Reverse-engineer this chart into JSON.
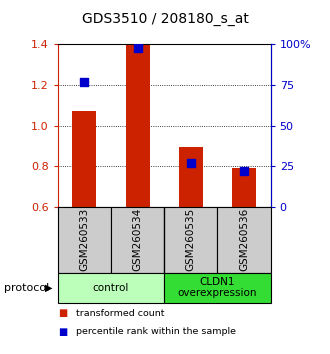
{
  "title": "GDS3510 / 208180_s_at",
  "samples": [
    "GSM260533",
    "GSM260534",
    "GSM260535",
    "GSM260536"
  ],
  "transformed_counts": [
    1.07,
    1.395,
    0.895,
    0.79
  ],
  "percentile_ranks": [
    77,
    98,
    27,
    22
  ],
  "bar_bottom": 0.6,
  "ylim_left": [
    0.6,
    1.4
  ],
  "ylim_right": [
    0,
    100
  ],
  "yticks_left": [
    0.6,
    0.8,
    1.0,
    1.2,
    1.4
  ],
  "yticks_right": [
    0,
    25,
    50,
    75,
    100
  ],
  "bar_color": "#cc2200",
  "dot_color": "#0000cc",
  "groups": [
    {
      "label": "control",
      "samples": [
        0,
        1
      ],
      "color": "#bbffbb"
    },
    {
      "label": "CLDN1\noverexpression",
      "samples": [
        2,
        3
      ],
      "color": "#33dd33"
    }
  ],
  "sample_bg_color": "#cccccc",
  "protocol_label": "protocol",
  "legend_items": [
    {
      "color": "#cc2200",
      "label": "transformed count"
    },
    {
      "color": "#0000cc",
      "label": "percentile rank within the sample"
    }
  ],
  "title_fontsize": 10,
  "tick_fontsize": 8,
  "label_fontsize": 7.5,
  "bar_width": 0.45,
  "grid_lines": [
    0.8,
    1.0,
    1.2
  ]
}
